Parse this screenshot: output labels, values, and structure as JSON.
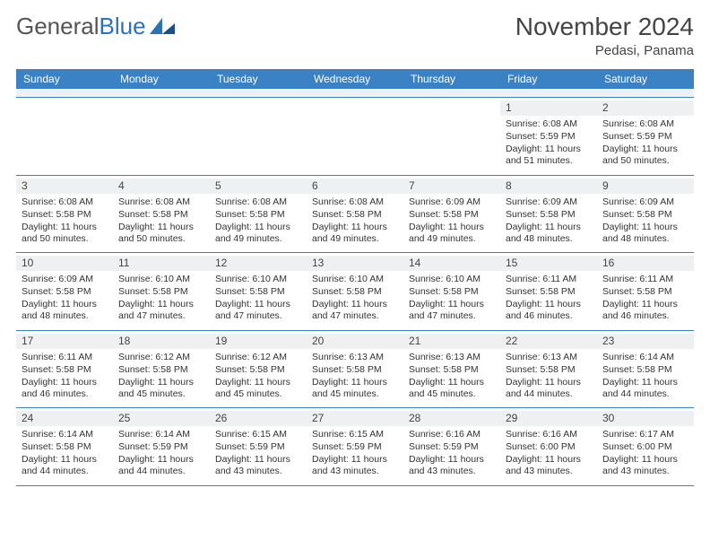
{
  "logo": {
    "text_gray": "General",
    "text_blue": "Blue"
  },
  "header": {
    "title": "November 2024",
    "location": "Pedasi, Panama"
  },
  "colors": {
    "header_bg": "#3b82c4",
    "daynum_bg": "#eef0f2",
    "week_border": "#3b82c4",
    "text": "#333333"
  },
  "day_labels": [
    "Sunday",
    "Monday",
    "Tuesday",
    "Wednesday",
    "Thursday",
    "Friday",
    "Saturday"
  ],
  "weeks": [
    [
      null,
      null,
      null,
      null,
      null,
      {
        "n": "1",
        "sunrise": "6:08 AM",
        "sunset": "5:59 PM",
        "day_h": "11",
        "day_m": "51"
      },
      {
        "n": "2",
        "sunrise": "6:08 AM",
        "sunset": "5:59 PM",
        "day_h": "11",
        "day_m": "50"
      }
    ],
    [
      {
        "n": "3",
        "sunrise": "6:08 AM",
        "sunset": "5:58 PM",
        "day_h": "11",
        "day_m": "50"
      },
      {
        "n": "4",
        "sunrise": "6:08 AM",
        "sunset": "5:58 PM",
        "day_h": "11",
        "day_m": "50"
      },
      {
        "n": "5",
        "sunrise": "6:08 AM",
        "sunset": "5:58 PM",
        "day_h": "11",
        "day_m": "49"
      },
      {
        "n": "6",
        "sunrise": "6:08 AM",
        "sunset": "5:58 PM",
        "day_h": "11",
        "day_m": "49"
      },
      {
        "n": "7",
        "sunrise": "6:09 AM",
        "sunset": "5:58 PM",
        "day_h": "11",
        "day_m": "49"
      },
      {
        "n": "8",
        "sunrise": "6:09 AM",
        "sunset": "5:58 PM",
        "day_h": "11",
        "day_m": "48"
      },
      {
        "n": "9",
        "sunrise": "6:09 AM",
        "sunset": "5:58 PM",
        "day_h": "11",
        "day_m": "48"
      }
    ],
    [
      {
        "n": "10",
        "sunrise": "6:09 AM",
        "sunset": "5:58 PM",
        "day_h": "11",
        "day_m": "48"
      },
      {
        "n": "11",
        "sunrise": "6:10 AM",
        "sunset": "5:58 PM",
        "day_h": "11",
        "day_m": "47"
      },
      {
        "n": "12",
        "sunrise": "6:10 AM",
        "sunset": "5:58 PM",
        "day_h": "11",
        "day_m": "47"
      },
      {
        "n": "13",
        "sunrise": "6:10 AM",
        "sunset": "5:58 PM",
        "day_h": "11",
        "day_m": "47"
      },
      {
        "n": "14",
        "sunrise": "6:10 AM",
        "sunset": "5:58 PM",
        "day_h": "11",
        "day_m": "47"
      },
      {
        "n": "15",
        "sunrise": "6:11 AM",
        "sunset": "5:58 PM",
        "day_h": "11",
        "day_m": "46"
      },
      {
        "n": "16",
        "sunrise": "6:11 AM",
        "sunset": "5:58 PM",
        "day_h": "11",
        "day_m": "46"
      }
    ],
    [
      {
        "n": "17",
        "sunrise": "6:11 AM",
        "sunset": "5:58 PM",
        "day_h": "11",
        "day_m": "46"
      },
      {
        "n": "18",
        "sunrise": "6:12 AM",
        "sunset": "5:58 PM",
        "day_h": "11",
        "day_m": "45"
      },
      {
        "n": "19",
        "sunrise": "6:12 AM",
        "sunset": "5:58 PM",
        "day_h": "11",
        "day_m": "45"
      },
      {
        "n": "20",
        "sunrise": "6:13 AM",
        "sunset": "5:58 PM",
        "day_h": "11",
        "day_m": "45"
      },
      {
        "n": "21",
        "sunrise": "6:13 AM",
        "sunset": "5:58 PM",
        "day_h": "11",
        "day_m": "45"
      },
      {
        "n": "22",
        "sunrise": "6:13 AM",
        "sunset": "5:58 PM",
        "day_h": "11",
        "day_m": "44"
      },
      {
        "n": "23",
        "sunrise": "6:14 AM",
        "sunset": "5:58 PM",
        "day_h": "11",
        "day_m": "44"
      }
    ],
    [
      {
        "n": "24",
        "sunrise": "6:14 AM",
        "sunset": "5:58 PM",
        "day_h": "11",
        "day_m": "44"
      },
      {
        "n": "25",
        "sunrise": "6:14 AM",
        "sunset": "5:59 PM",
        "day_h": "11",
        "day_m": "44"
      },
      {
        "n": "26",
        "sunrise": "6:15 AM",
        "sunset": "5:59 PM",
        "day_h": "11",
        "day_m": "43"
      },
      {
        "n": "27",
        "sunrise": "6:15 AM",
        "sunset": "5:59 PM",
        "day_h": "11",
        "day_m": "43"
      },
      {
        "n": "28",
        "sunrise": "6:16 AM",
        "sunset": "5:59 PM",
        "day_h": "11",
        "day_m": "43"
      },
      {
        "n": "29",
        "sunrise": "6:16 AM",
        "sunset": "6:00 PM",
        "day_h": "11",
        "day_m": "43"
      },
      {
        "n": "30",
        "sunrise": "6:17 AM",
        "sunset": "6:00 PM",
        "day_h": "11",
        "day_m": "43"
      }
    ]
  ]
}
